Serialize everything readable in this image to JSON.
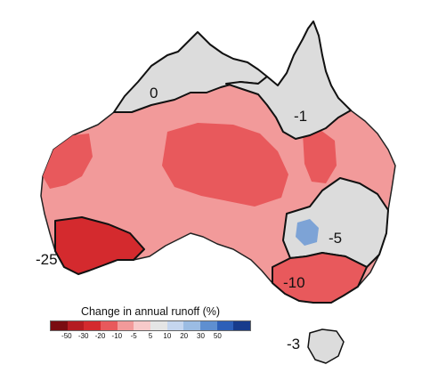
{
  "map": {
    "colors": {
      "land_base": "#f29a9a",
      "land_dark": "#e8595c",
      "land_deep": "#d42a2e",
      "neutral": "#dcdcdc",
      "blue": "#7da3d6",
      "boundary": "#111111",
      "coast": "#222222"
    },
    "regions": [
      {
        "id": "north-top-end",
        "label": "0"
      },
      {
        "id": "north-east-queensland",
        "label": "-1"
      },
      {
        "id": "south-west",
        "label": "-25"
      },
      {
        "id": "murray-darling",
        "label": "-5"
      },
      {
        "id": "south-east",
        "label": "-10"
      },
      {
        "id": "tasmania",
        "label": "-3"
      }
    ]
  },
  "legend": {
    "title": "Change in annual runoff (%)",
    "ticks": [
      "-50",
      "-30",
      "-20",
      "-10",
      "-5",
      "5",
      "10",
      "20",
      "30",
      "50"
    ],
    "swatches": [
      "#7a0d12",
      "#b41c22",
      "#d42a2e",
      "#e8595c",
      "#f29a9a",
      "#f7caca",
      "#e5e5e5",
      "#c5d6ef",
      "#9bbce3",
      "#5f8fd0",
      "#2d5fb8",
      "#173b8c"
    ]
  }
}
